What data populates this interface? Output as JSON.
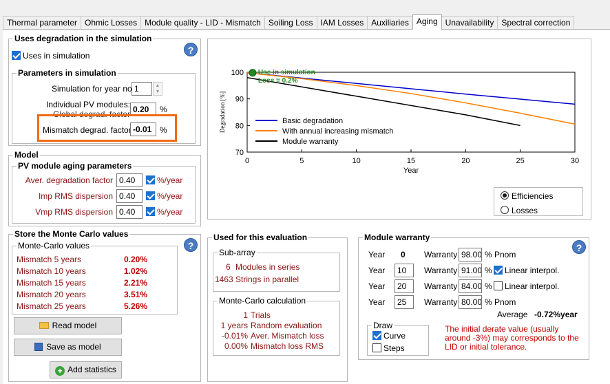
{
  "tabs": [
    {
      "label": "Thermal parameter",
      "active": false
    },
    {
      "label": "Ohmic Losses",
      "active": false
    },
    {
      "label": "Module quality - LID - Mismatch",
      "active": false
    },
    {
      "label": "Soiling Loss",
      "active": false
    },
    {
      "label": "IAM Losses",
      "active": false
    },
    {
      "label": "Auxiliaries",
      "active": false
    },
    {
      "label": "Aging",
      "active": true
    },
    {
      "label": "Unavailability",
      "active": false
    },
    {
      "label": "Spectral correction",
      "active": false
    }
  ],
  "uses_degradation": {
    "title": "Uses degradation in the simulation",
    "checkbox_label": "Uses in simulation",
    "params_title": "Parameters in simulation",
    "sim_year_label": "Simulation for year no",
    "sim_year_value": "1",
    "individual_label_1": "Individual PV modules:",
    "individual_label_2": "Global degrad. factor",
    "global_factor_value": "0.20",
    "percent": "%",
    "mismatch_label": "Mismatch degrad. factor",
    "mismatch_value": "-0.01"
  },
  "model": {
    "title": "Model",
    "aging_title": "PV module aging parameters",
    "rows": [
      {
        "label": "Aver. degradation factor",
        "value": "0.40",
        "unit": "%/year"
      },
      {
        "label": "Imp RMS dispersion",
        "value": "0.40",
        "unit": "%/year"
      },
      {
        "label": "Vmp RMS dispersion",
        "value": "0.40",
        "unit": "%/year"
      }
    ]
  },
  "store": {
    "title": "Store the Monte Carlo values",
    "mc_title": "Monte-Carlo values",
    "rows": [
      {
        "name": "Mismatch  5 years",
        "value": "0.20%"
      },
      {
        "name": "Mismatch 10 years",
        "value": "1.02%"
      },
      {
        "name": "Mismatch 15 years",
        "value": "2.21%"
      },
      {
        "name": "Mismatch 20 years",
        "value": "3.51%"
      },
      {
        "name": "Mismatch 25 years",
        "value": "5.26%"
      }
    ],
    "read_model": "Read model",
    "save_model": "Save as model",
    "add_stats": "Add statistics"
  },
  "evaluation": {
    "title": "Used for this evaluation",
    "subarray_title": "Sub-array",
    "modules_count": "6",
    "modules_label": "Modules in series",
    "strings_count": "1463",
    "strings_label": "Strings in parallel",
    "mc_title": "Monte-Carlo calculation",
    "lines": [
      {
        "num": "1",
        "text": "Trials"
      },
      {
        "num": "1 years",
        "text": "Random evaluation"
      },
      {
        "num": "-0.01%",
        "text": "Aver. Mismatch loss"
      },
      {
        "num": "0.00%",
        "text": "Mismatch loss RMS"
      }
    ]
  },
  "warranty": {
    "title": "Module warranty",
    "year_label": "Year",
    "warranty_label": "Warranty",
    "pnom": "% Pnom",
    "rows": [
      {
        "year": "0",
        "warranty": "98.00",
        "after": "% Pnom"
      },
      {
        "year": "10",
        "warranty": "91.00",
        "after": "Linear interpol."
      },
      {
        "year": "20",
        "warranty": "84.00",
        "after": "Linear interpol."
      },
      {
        "year": "25",
        "warranty": "80.00",
        "after": "% Pnom"
      }
    ],
    "average_label": "Average",
    "average_value": "-0.72%year",
    "draw_title": "Draw",
    "curve": "Curve",
    "steps": "Steps",
    "note": "The initial derate value (usually around -3%) may corresponds to the LID or initial tolerance."
  },
  "view_options": {
    "efficiencies": "Efficiencies",
    "losses": "Losses"
  },
  "chart_data": {
    "type": "line",
    "ylabel": "Degradation [%]",
    "xlabel": "Year",
    "xlim": [
      0,
      30
    ],
    "ylim": [
      70,
      100
    ],
    "xticks": [
      0,
      5,
      10,
      15,
      20,
      25,
      30
    ],
    "yticks": [
      70,
      80,
      90,
      100
    ],
    "annotation_1": "Use in simulation",
    "annotation_2": "Loss = 0.2%",
    "marker": {
      "x": 0.5,
      "y": 99.8
    },
    "series": [
      {
        "name": "Basic degradation",
        "color": "#0000cc",
        "x": [
          0,
          5,
          10,
          15,
          20,
          25,
          30
        ],
        "y": [
          99.8,
          97.8,
          95.8,
          93.8,
          91.8,
          89.9,
          88.0
        ]
      },
      {
        "name": "With annual increasing mismatch",
        "color": "#ff8000",
        "x": [
          0,
          5,
          10,
          15,
          20,
          25,
          30
        ],
        "y": [
          99.8,
          97.6,
          95.0,
          92.0,
          88.5,
          84.6,
          80.5
        ]
      },
      {
        "name": "Module warranty",
        "color": "#000000",
        "x": [
          0,
          10,
          20,
          25
        ],
        "y": [
          98,
          91,
          84,
          80
        ]
      }
    ]
  }
}
